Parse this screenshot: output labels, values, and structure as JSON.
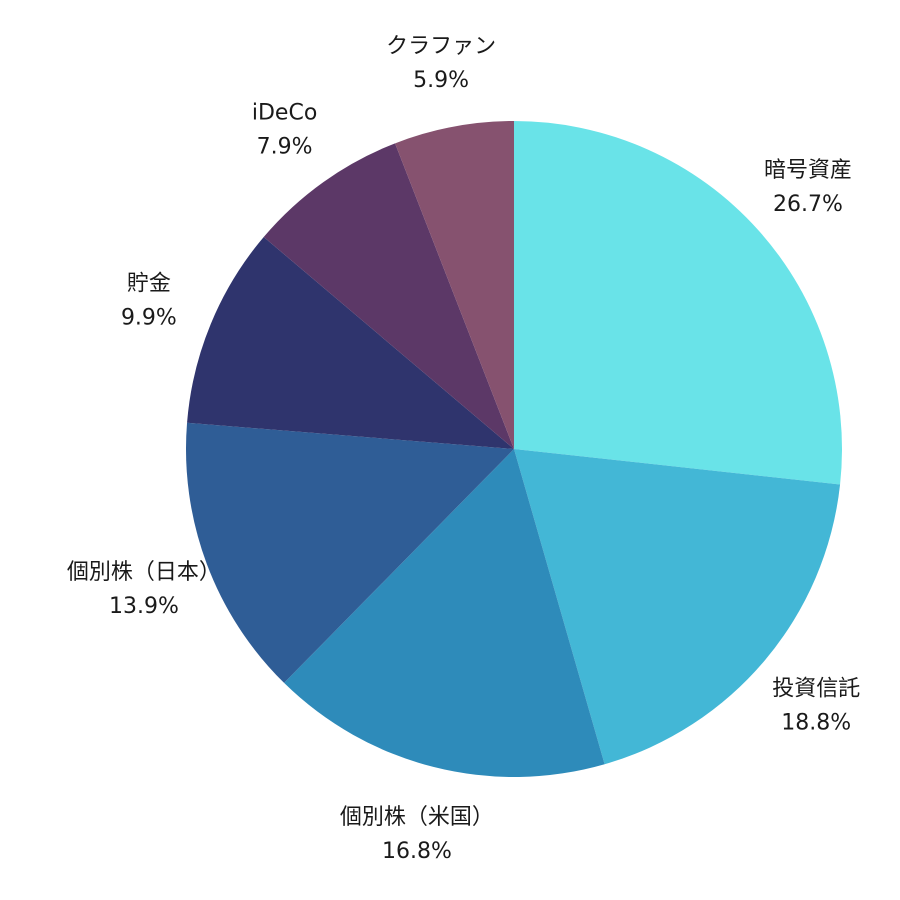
{
  "chart_data": {
    "type": "pie",
    "title": "",
    "start_angle_deg": 0,
    "direction": "clockwise",
    "slices": [
      {
        "label": "暗号資産",
        "value": 26.7,
        "display": "26.7%",
        "color": "#69E3E8"
      },
      {
        "label": "投資信託",
        "value": 18.8,
        "display": "18.8%",
        "color": "#43B7D6"
      },
      {
        "label": "個別株（米国）",
        "value": 16.8,
        "display": "16.8%",
        "color": "#2E8BBA"
      },
      {
        "label": "個別株（日本）",
        "value": 13.9,
        "display": "13.9%",
        "color": "#2F5D96"
      },
      {
        "label": "貯金",
        "value": 9.9,
        "display": "9.9%",
        "color": "#2F346D"
      },
      {
        "label": "iDeCo",
        "value": 7.9,
        "display": "7.9%",
        "color": "#5C3867"
      },
      {
        "label": "クラファン",
        "value": 5.9,
        "display": "5.9%",
        "color": "#86526F"
      }
    ]
  }
}
